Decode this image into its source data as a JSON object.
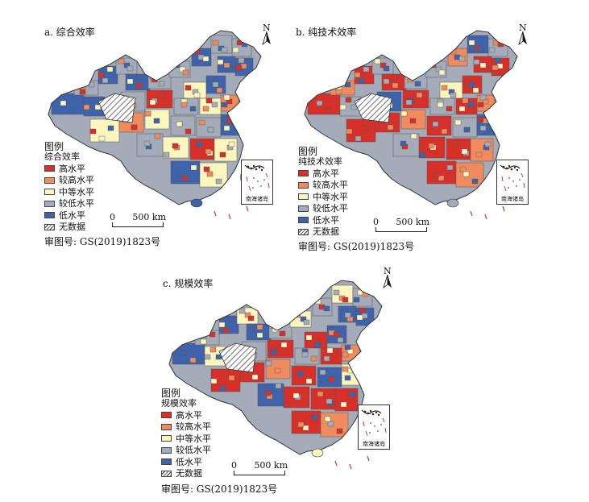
{
  "panels": [
    {
      "id": "a",
      "title": "a. 综合效率",
      "legend_title": "图例",
      "legend_subtitle": "综合效率",
      "region_colors": [
        "blue",
        "gray",
        "blue",
        "blue",
        "gray",
        "blue",
        "gray",
        "gray",
        "blue",
        "gray",
        "gray",
        "blue",
        "blue",
        "yellow",
        "blue",
        "orange",
        "yellow",
        "gray",
        "red",
        "gray",
        "yellow",
        "orange",
        "yellow",
        "gray",
        "gray",
        "blue",
        "yellow",
        "red",
        "yellow",
        "gray",
        "blue",
        "yellow"
      ]
    },
    {
      "id": "b",
      "title": "b. 纯技术效率",
      "legend_title": "图例",
      "legend_subtitle": "纯技术效率",
      "region_colors": [
        "red",
        "orange",
        "gray",
        "red",
        "gray",
        "red",
        "gray",
        "gray",
        "orange",
        "blue",
        "gray",
        "red",
        "red",
        "yellow",
        "red",
        "orange",
        "red",
        "gray",
        "red",
        "blue",
        "red",
        "red",
        "orange",
        "red",
        "gray",
        "blue",
        "red",
        "red",
        "orange",
        "gray",
        "red",
        "orange"
      ]
    },
    {
      "id": "c",
      "title": "c. 规模效率",
      "legend_title": "图例",
      "legend_subtitle": "规模效率",
      "region_colors": [
        "blue",
        "gray",
        "yellow",
        "blue",
        "yellow",
        "blue",
        "gray",
        "yellow",
        "gray",
        "yellow",
        "gray",
        "blue",
        "blue",
        "red",
        "blue",
        "orange",
        "red",
        "gray",
        "red",
        "gray",
        "red",
        "red",
        "orange",
        "red",
        "blue",
        "yellow",
        "red",
        "red",
        "red",
        "blue",
        "red",
        "orange"
      ]
    }
  ],
  "legend_items": [
    {
      "label": "高水平",
      "color": "#d7302a"
    },
    {
      "label": "较高水平",
      "color": "#ef8b5e"
    },
    {
      "label": "中等水平",
      "color": "#fbf5be"
    },
    {
      "label": "较低水平",
      "color": "#a3acb8"
    },
    {
      "label": "低水平",
      "color": "#3e63ab"
    },
    {
      "label": "无数据",
      "color": "hatch"
    }
  ],
  "scale": {
    "zero": "0",
    "distance": "500 km"
  },
  "north_label": "N",
  "inset_label": "南海诸岛",
  "approval_number": "审图号: GS(2019)1823号",
  "colors": {
    "red": "#d7302a",
    "orange": "#ef8b5e",
    "yellow": "#fbf5be",
    "gray": "#a3acb8",
    "blue": "#3e63ab",
    "border": "#555555"
  }
}
